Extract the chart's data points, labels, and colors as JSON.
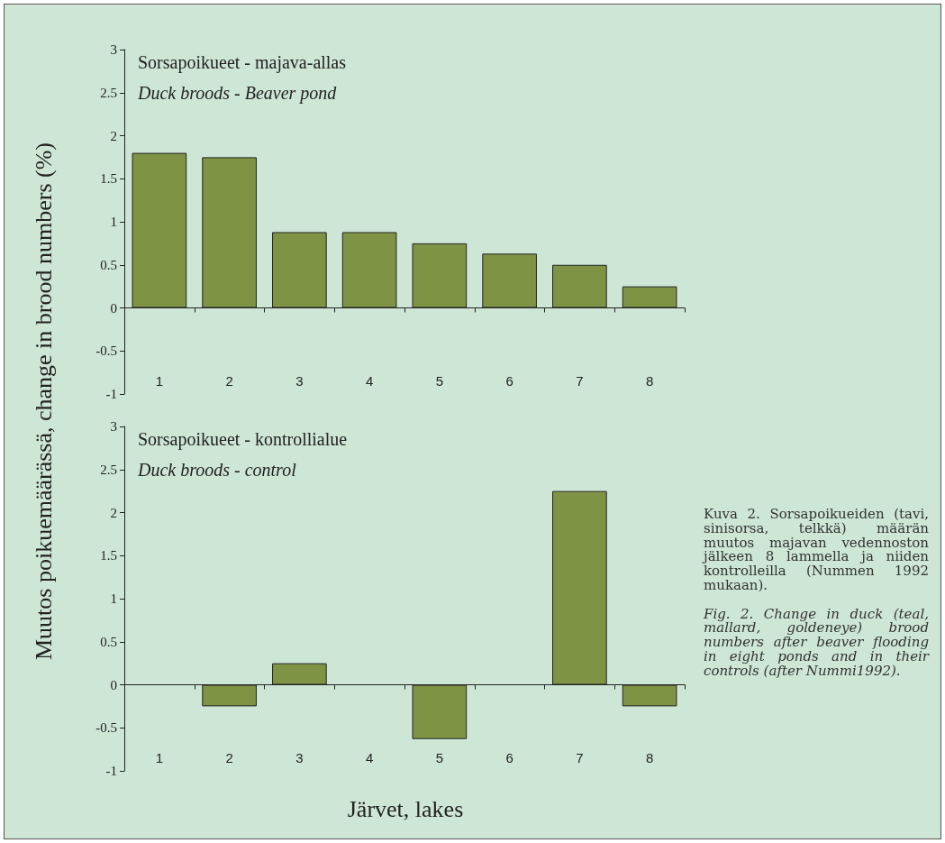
{
  "chart_data": [
    {
      "type": "bar",
      "title": "Sorsapoikueet - majava-allas",
      "subtitle": "Duck broods - Beaver pond",
      "ylabel": "Muutos poikuemäärässä, change in brood numbers (%)",
      "categories": [
        "1",
        "2",
        "3",
        "4",
        "5",
        "6",
        "7",
        "8"
      ],
      "series": [
        {
          "color": "#7f9345",
          "values": [
            1.8,
            1.75,
            0.88,
            0.88,
            0.75,
            0.63,
            0.5,
            0.25
          ]
        }
      ],
      "ylim": [
        -1,
        3
      ],
      "yticks": [
        -1,
        -0.5,
        0,
        0.5,
        1,
        1.5,
        2,
        2.5,
        3
      ]
    },
    {
      "type": "bar",
      "title": "Sorsapoikueet - kontrollialue",
      "subtitle": "Duck broods - control",
      "xlabel": "Järvet, lakes",
      "categories": [
        "1",
        "2",
        "3",
        "4",
        "5",
        "6",
        "7",
        "8"
      ],
      "series": [
        {
          "color": "#7f9345",
          "values": [
            0,
            -0.25,
            0.25,
            0,
            -0.63,
            0,
            2.25,
            -0.25
          ]
        }
      ],
      "ylim": [
        -1,
        3
      ],
      "yticks": [
        -1,
        -0.5,
        0,
        0.5,
        1,
        1.5,
        2,
        2.5,
        3
      ],
      "annotations": [
        "Kuva 2. Sorsapoikueiden (tavi, sinisorsa, telkkä) määrän muutos majavan vedennoston jälkeen 8 lammella ja niiden kontrolleilla (Nummen 1992 mukaan).",
        "Fig. 2. Change in duck (teal, mallard, goldeneye) brood numbers after beaver flooding in eight ponds and in their controls (after Nummi1992)."
      ]
    }
  ]
}
